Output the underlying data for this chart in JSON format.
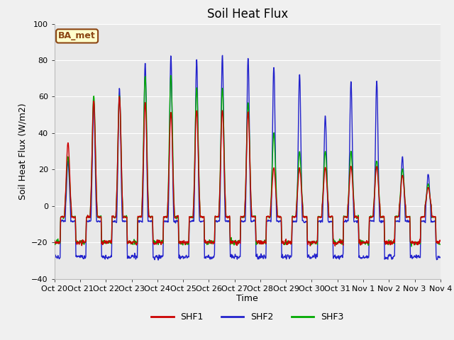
{
  "title": "Soil Heat Flux",
  "ylabel": "Soil Heat Flux (W/m2)",
  "xlabel": "Time",
  "ylim": [
    -40,
    100
  ],
  "yticks": [
    -40,
    -20,
    0,
    20,
    40,
    60,
    80,
    100
  ],
  "line_colors": {
    "SHF1": "#cc0000",
    "SHF2": "#2222cc",
    "SHF3": "#00aa00"
  },
  "line_widths": {
    "SHF1": 1.0,
    "SHF2": 1.0,
    "SHF3": 1.0
  },
  "bg_color": "#f0f0f0",
  "plot_bg_color": "#e8e8e8",
  "grid_color": "#ffffff",
  "annotation_text": "BA_met",
  "annotation_bg": "#ffffcc",
  "annotation_border": "#8B4513",
  "num_days": 15,
  "x_tick_labels": [
    "Oct 20",
    "Oct 21",
    "Oct 22",
    "Oct 23",
    "Oct 24",
    "Oct 25",
    "Oct 26",
    "Oct 27",
    "Oct 28",
    "Oct 29",
    "Oct 30",
    "Oct 31",
    "Nov 1",
    "Nov 2",
    "Nov 3",
    "Nov 4"
  ],
  "title_fontsize": 12,
  "label_fontsize": 9,
  "tick_fontsize": 8,
  "legend_fontsize": 9,
  "day_peaks_shf1": [
    35,
    58,
    60,
    57,
    52,
    53,
    53,
    52,
    21,
    21,
    21,
    22,
    22,
    17,
    10
  ],
  "day_peaks_shf2": [
    25,
    58,
    65,
    79,
    83,
    81,
    84,
    82,
    77,
    73,
    50,
    69,
    69,
    27,
    18
  ],
  "day_peaks_shf3": [
    27,
    61,
    61,
    72,
    72,
    65,
    65,
    57,
    40,
    30,
    30,
    30,
    25,
    20,
    12
  ],
  "night_shf1": -20,
  "night_shf2": -28,
  "night_shf3": -20,
  "figsize": [
    6.4,
    4.8
  ],
  "dpi": 100
}
